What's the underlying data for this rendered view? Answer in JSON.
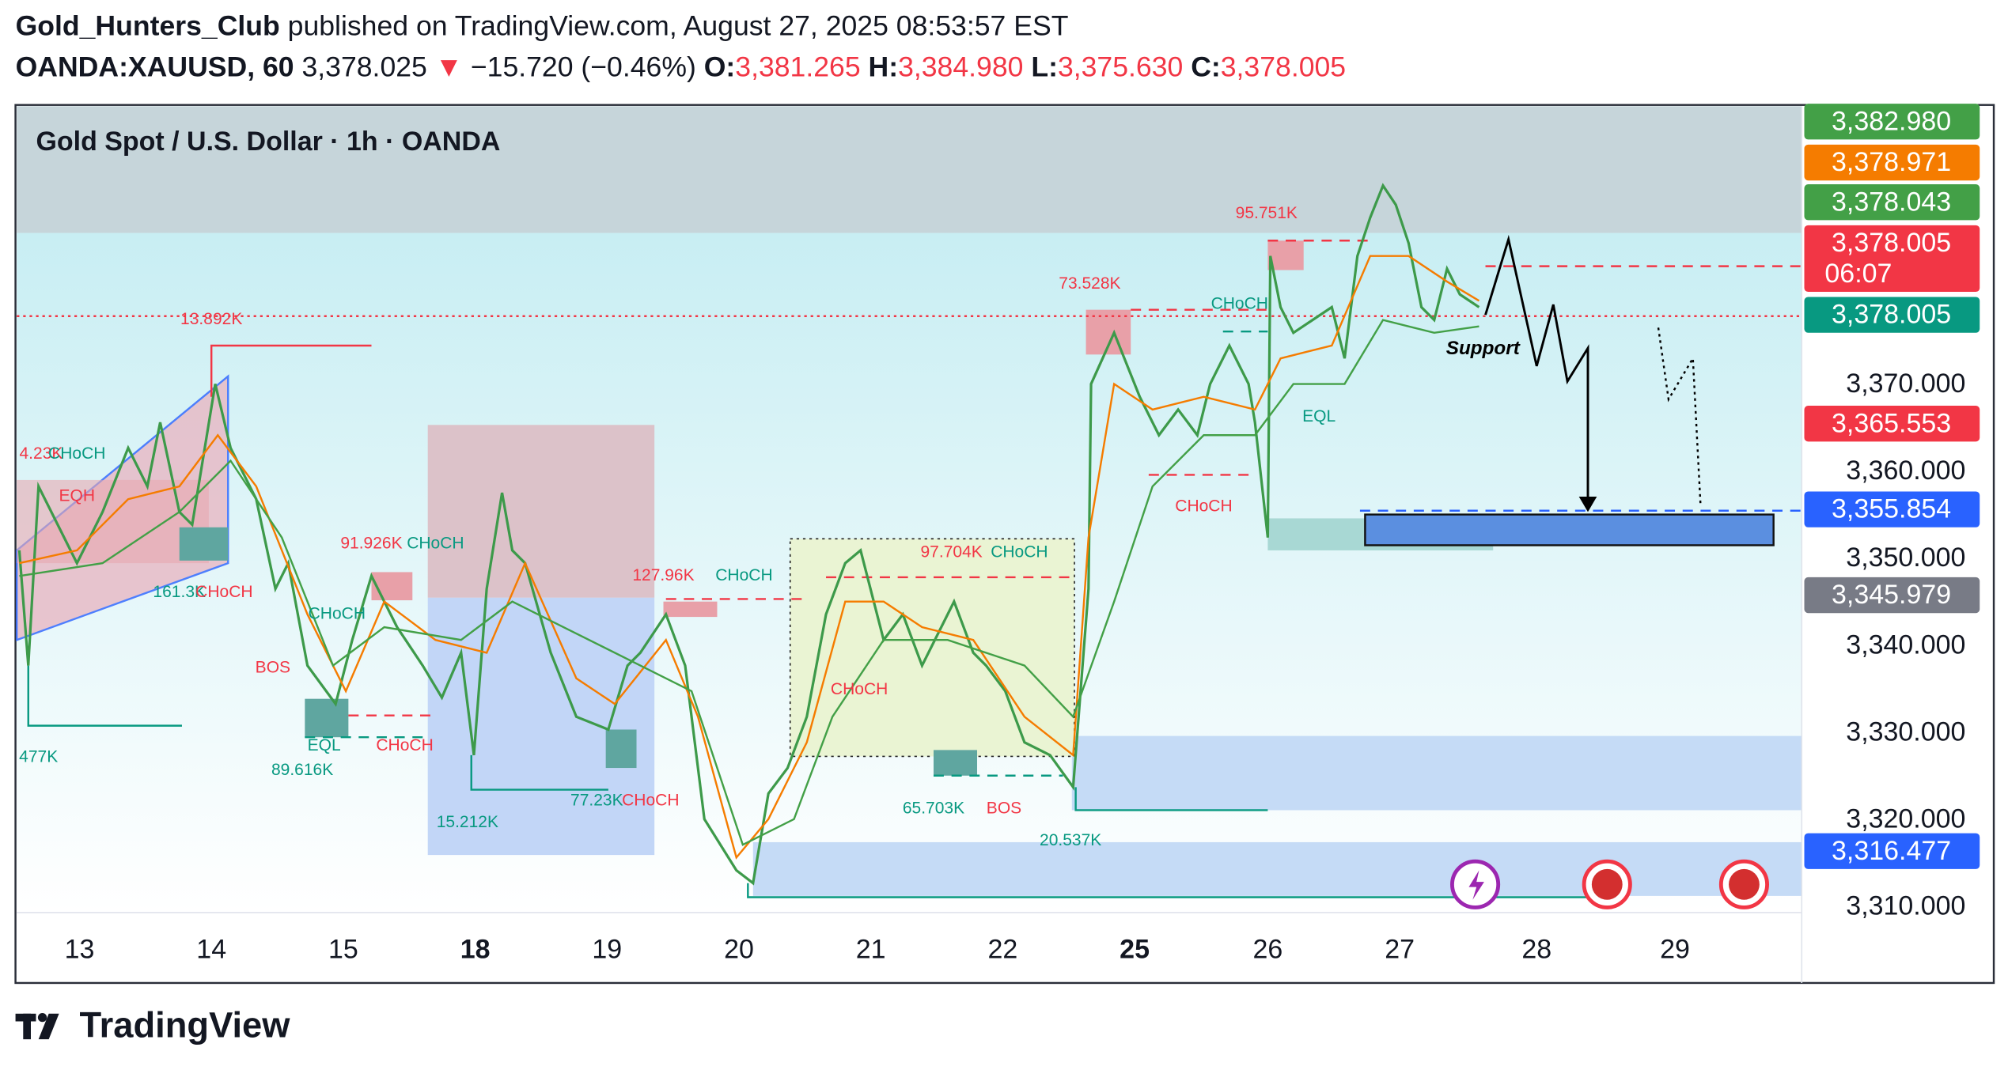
{
  "header": {
    "author": "Gold_Hunters_Club",
    "published": "published on TradingView.com, August 27, 2025 08:53:57 EST",
    "symbol": "OANDA:XAUUSD, 60",
    "price": "3,378.025",
    "arrow": "▼",
    "change": "−15.720 (−0.46%)",
    "o_label": "O:",
    "o": "3,381.265",
    "h_label": "H:",
    "h": "3,384.980",
    "l_label": "L:",
    "l": "3,375.630",
    "c_label": "C:",
    "c": "3,378.005"
  },
  "chart": {
    "title": "Gold Spot / U.S. Dollar · 1h · OANDA",
    "price_ticks": [
      "3,370.000",
      "3,360.000",
      "3,350.000",
      "3,340.000",
      "3,330.000",
      "3,320.000",
      "3,310.000"
    ],
    "price_badges": [
      {
        "text": "3,382.980",
        "color": "#43a047"
      },
      {
        "text": "3,378.971",
        "color": "#f57c00"
      },
      {
        "text": "3,378.043",
        "color": "#43a047"
      },
      {
        "text": "3,378.005",
        "sub": "06:07",
        "color": "#f23645"
      },
      {
        "text": "3,378.005",
        "color": "#089981"
      },
      {
        "text": "3,365.553",
        "color": "#f23645"
      },
      {
        "text": "3,355.854",
        "color": "#2962ff"
      },
      {
        "text": "3,345.979",
        "color": "#787b86"
      },
      {
        "text": "3,316.477",
        "color": "#2962ff"
      }
    ],
    "time_labels": [
      "13",
      "14",
      "15",
      "18",
      "19",
      "20",
      "21",
      "22",
      "25",
      "26",
      "27",
      "28",
      "29"
    ],
    "annotations": [
      "13.892K",
      "4.23K",
      "CHoCH",
      "EQH",
      "161.3K",
      "CHoCH",
      "BOS",
      "EQL",
      "89.616K",
      "CHoCH",
      "CHoCH",
      "91.926K",
      "CHoCH",
      "15.212K",
      "77.23K",
      "CHoCH",
      "127.96K",
      "CHoCH",
      "97.704K",
      "CHoCH",
      "CHoCH",
      "65.703K",
      "BOS",
      "20.537K",
      "73.528K",
      "95.751K",
      "CHoCH",
      "EQL",
      "CHoCH",
      "477K",
      "Support"
    ]
  },
  "footer": {
    "logo": "TradingView"
  }
}
